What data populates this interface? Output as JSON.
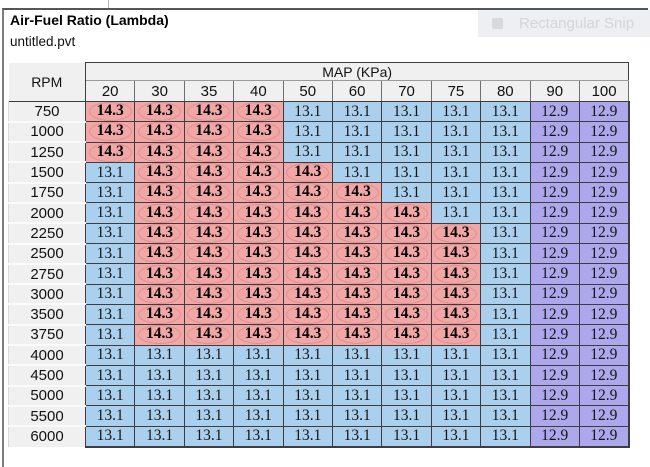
{
  "window": {
    "title": "Air-Fuel Ratio (Lambda)",
    "subtitle": "untitled.pvt"
  },
  "overlay": {
    "label": "Rectangular Snip",
    "icon": "snip-icon"
  },
  "colors": {
    "hot_bg": "#f2a7a7",
    "hot_ring": "#dd8f8f",
    "cool_bg": "#abd0ee",
    "cold_bg": "#ada8ec",
    "header_bg": "#f0f0f0",
    "grid_border": "#3c3c41"
  },
  "table": {
    "corner_header": "RPM",
    "span_header": "MAP (KPa)",
    "columns": [
      "20",
      "30",
      "35",
      "40",
      "50",
      "60",
      "70",
      "75",
      "80",
      "90",
      "100"
    ],
    "value_class_map": {
      "14.3": "hot",
      "13.1": "cool",
      "12.9": "cold"
    },
    "rows": [
      {
        "rpm": "750",
        "values": [
          "14.3",
          "14.3",
          "14.3",
          "14.3",
          "13.1",
          "13.1",
          "13.1",
          "13.1",
          "13.1",
          "12.9",
          "12.9"
        ]
      },
      {
        "rpm": "1000",
        "values": [
          "14.3",
          "14.3",
          "14.3",
          "14.3",
          "13.1",
          "13.1",
          "13.1",
          "13.1",
          "13.1",
          "12.9",
          "12.9"
        ]
      },
      {
        "rpm": "1250",
        "values": [
          "14.3",
          "14.3",
          "14.3",
          "14.3",
          "13.1",
          "13.1",
          "13.1",
          "13.1",
          "13.1",
          "12.9",
          "12.9"
        ]
      },
      {
        "rpm": "1500",
        "values": [
          "13.1",
          "14.3",
          "14.3",
          "14.3",
          "14.3",
          "13.1",
          "13.1",
          "13.1",
          "13.1",
          "12.9",
          "12.9"
        ]
      },
      {
        "rpm": "1750",
        "values": [
          "13.1",
          "14.3",
          "14.3",
          "14.3",
          "14.3",
          "14.3",
          "13.1",
          "13.1",
          "13.1",
          "12.9",
          "12.9"
        ]
      },
      {
        "rpm": "2000",
        "values": [
          "13.1",
          "14.3",
          "14.3",
          "14.3",
          "14.3",
          "14.3",
          "14.3",
          "13.1",
          "13.1",
          "12.9",
          "12.9"
        ]
      },
      {
        "rpm": "2250",
        "values": [
          "13.1",
          "14.3",
          "14.3",
          "14.3",
          "14.3",
          "14.3",
          "14.3",
          "14.3",
          "13.1",
          "12.9",
          "12.9"
        ]
      },
      {
        "rpm": "2500",
        "values": [
          "13.1",
          "14.3",
          "14.3",
          "14.3",
          "14.3",
          "14.3",
          "14.3",
          "14.3",
          "13.1",
          "12.9",
          "12.9"
        ]
      },
      {
        "rpm": "2750",
        "values": [
          "13.1",
          "14.3",
          "14.3",
          "14.3",
          "14.3",
          "14.3",
          "14.3",
          "14.3",
          "13.1",
          "12.9",
          "12.9"
        ]
      },
      {
        "rpm": "3000",
        "values": [
          "13.1",
          "14.3",
          "14.3",
          "14.3",
          "14.3",
          "14.3",
          "14.3",
          "14.3",
          "13.1",
          "12.9",
          "12.9"
        ]
      },
      {
        "rpm": "3500",
        "values": [
          "13.1",
          "14.3",
          "14.3",
          "14.3",
          "14.3",
          "14.3",
          "14.3",
          "14.3",
          "13.1",
          "12.9",
          "12.9"
        ]
      },
      {
        "rpm": "3750",
        "values": [
          "13.1",
          "14.3",
          "14.3",
          "14.3",
          "14.3",
          "14.3",
          "14.3",
          "14.3",
          "13.1",
          "12.9",
          "12.9"
        ]
      },
      {
        "rpm": "4000",
        "values": [
          "13.1",
          "13.1",
          "13.1",
          "13.1",
          "13.1",
          "13.1",
          "13.1",
          "13.1",
          "13.1",
          "12.9",
          "12.9"
        ]
      },
      {
        "rpm": "4500",
        "values": [
          "13.1",
          "13.1",
          "13.1",
          "13.1",
          "13.1",
          "13.1",
          "13.1",
          "13.1",
          "13.1",
          "12.9",
          "12.9"
        ]
      },
      {
        "rpm": "5000",
        "values": [
          "13.1",
          "13.1",
          "13.1",
          "13.1",
          "13.1",
          "13.1",
          "13.1",
          "13.1",
          "13.1",
          "12.9",
          "12.9"
        ]
      },
      {
        "rpm": "5500",
        "values": [
          "13.1",
          "13.1",
          "13.1",
          "13.1",
          "13.1",
          "13.1",
          "13.1",
          "13.1",
          "13.1",
          "12.9",
          "12.9"
        ]
      },
      {
        "rpm": "6000",
        "values": [
          "13.1",
          "13.1",
          "13.1",
          "13.1",
          "13.1",
          "13.1",
          "13.1",
          "13.1",
          "13.1",
          "12.9",
          "12.9"
        ]
      }
    ]
  }
}
